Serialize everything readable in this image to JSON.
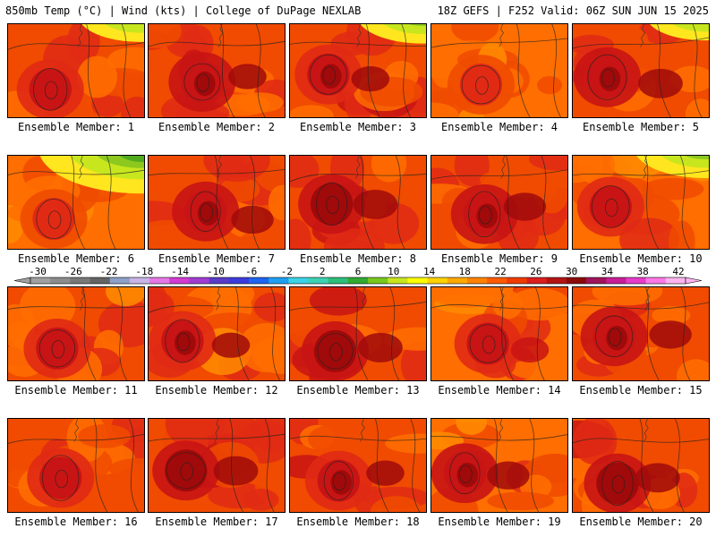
{
  "header": {
    "left": "850mb Temp (°C) | Wind (kts) | College of DuPage NEXLAB",
    "right": "18Z GEFS | F252 Valid: 06Z SUN JUN 15 2025"
  },
  "members": [
    {
      "label": "Ensemble Member: 1",
      "base": 0.55,
      "core": 0.85,
      "green": 0.15,
      "hot": 0.2
    },
    {
      "label": "Ensemble Member: 2",
      "base": 0.6,
      "core": 0.9,
      "green": 0.0,
      "hot": 0.3
    },
    {
      "label": "Ensemble Member: 3",
      "base": 0.58,
      "core": 0.88,
      "green": 0.2,
      "hot": 0.3
    },
    {
      "label": "Ensemble Member: 4",
      "base": 0.45,
      "core": 0.7,
      "green": 0.0,
      "hot": 0.0
    },
    {
      "label": "Ensemble Member: 5",
      "base": 0.55,
      "core": 0.92,
      "green": 0.1,
      "hot": 0.6
    },
    {
      "label": "Ensemble Member: 6",
      "base": 0.4,
      "core": 0.72,
      "green": 0.8,
      "hot": 0.0
    },
    {
      "label": "Ensemble Member: 7",
      "base": 0.55,
      "core": 0.92,
      "green": 0.0,
      "hot": 0.5
    },
    {
      "label": "Ensemble Member: 8",
      "base": 0.62,
      "core": 0.95,
      "green": 0.0,
      "hot": 0.6
    },
    {
      "label": "Ensemble Member: 9",
      "base": 0.55,
      "core": 0.92,
      "green": 0.0,
      "hot": 0.5
    },
    {
      "label": "Ensemble Member: 10",
      "base": 0.45,
      "core": 0.82,
      "green": 0.3,
      "hot": 0.1
    },
    {
      "label": "Ensemble Member: 11",
      "base": 0.5,
      "core": 0.82,
      "green": 0.0,
      "hot": 0.1
    },
    {
      "label": "Ensemble Member: 12",
      "base": 0.5,
      "core": 0.88,
      "green": 0.0,
      "hot": 0.3
    },
    {
      "label": "Ensemble Member: 13",
      "base": 0.6,
      "core": 0.95,
      "green": 0.0,
      "hot": 0.6
    },
    {
      "label": "Ensemble Member: 14",
      "base": 0.48,
      "core": 0.85,
      "green": 0.0,
      "hot": 0.3
    },
    {
      "label": "Ensemble Member: 15",
      "base": 0.5,
      "core": 0.92,
      "green": 0.0,
      "hot": 0.5
    },
    {
      "label": "Ensemble Member: 16",
      "base": 0.5,
      "core": 0.85,
      "green": 0.0,
      "hot": 0.2
    },
    {
      "label": "Ensemble Member: 17",
      "base": 0.62,
      "core": 0.95,
      "green": 0.0,
      "hot": 0.6
    },
    {
      "label": "Ensemble Member: 18",
      "base": 0.55,
      "core": 0.88,
      "green": 0.0,
      "hot": 0.3
    },
    {
      "label": "Ensemble Member: 19",
      "base": 0.45,
      "core": 0.92,
      "green": 0.0,
      "hot": 0.5
    },
    {
      "label": "Ensemble Member: 20",
      "base": 0.58,
      "core": 0.95,
      "green": 0.0,
      "hot": 0.6
    }
  ],
  "colorbar": {
    "ticks": [
      "-30",
      "-26",
      "-22",
      "-18",
      "-14",
      "-10",
      "-6",
      "-2",
      "2",
      "6",
      "10",
      "14",
      "18",
      "22",
      "26",
      "30",
      "34",
      "38",
      "42"
    ],
    "colors": [
      "#a0a0a0",
      "#8c8c8c",
      "#787878",
      "#646464",
      "#8ca0c8",
      "#c8b4e6",
      "#e678e6",
      "#d23cd2",
      "#a03cd2",
      "#5a3cc8",
      "#3c3cdc",
      "#1e64f0",
      "#1ea0f0",
      "#3cd2e6",
      "#3cd2b4",
      "#2ebe7a",
      "#32aa32",
      "#78c81e",
      "#c8e61e",
      "#ffff00",
      "#ffd200",
      "#ffaa00",
      "#ff8200",
      "#ff5a00",
      "#f03c00",
      "#dc1e1e",
      "#b41414",
      "#8c0a0a",
      "#a0145a",
      "#c81e96",
      "#e63cc8",
      "#ff78e6",
      "#ffb4f0"
    ]
  }
}
